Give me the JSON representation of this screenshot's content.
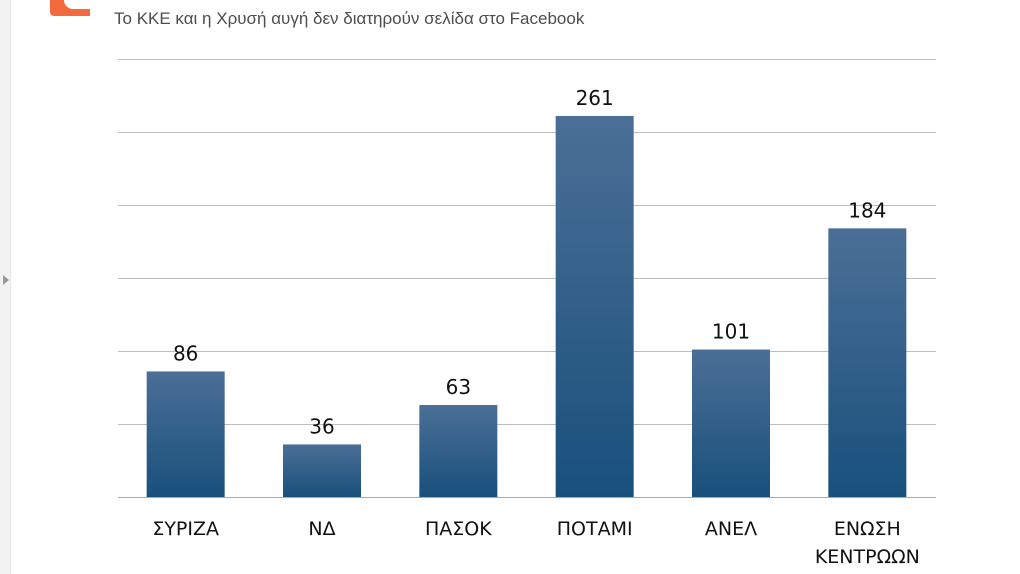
{
  "header": {
    "subtitle": "Το ΚΚΕ και η Χρυσή αυγή δεν διατηρούν σελίδα στο Facebook"
  },
  "chart_data": {
    "type": "bar",
    "categories": [
      [
        "ΣΥΡΙΖΑ"
      ],
      [
        "ΝΔ"
      ],
      [
        "ΠΑΣΟΚ"
      ],
      [
        "ΠΟΤΑΜΙ"
      ],
      [
        "ΑΝΕΛ"
      ],
      [
        "ΕΝΩΣΗ",
        "ΚΕΝΤΡΩΩΝ"
      ]
    ],
    "values": [
      86,
      36,
      63,
      261,
      101,
      184
    ],
    "ylim": [
      0,
      300
    ],
    "grid": true,
    "gridlines": [
      50,
      100,
      150,
      200,
      250,
      300
    ],
    "title": "",
    "xlabel": "",
    "ylabel": "",
    "bar_color_top": "#4b6f96",
    "bar_color_bottom": "#18507c"
  }
}
